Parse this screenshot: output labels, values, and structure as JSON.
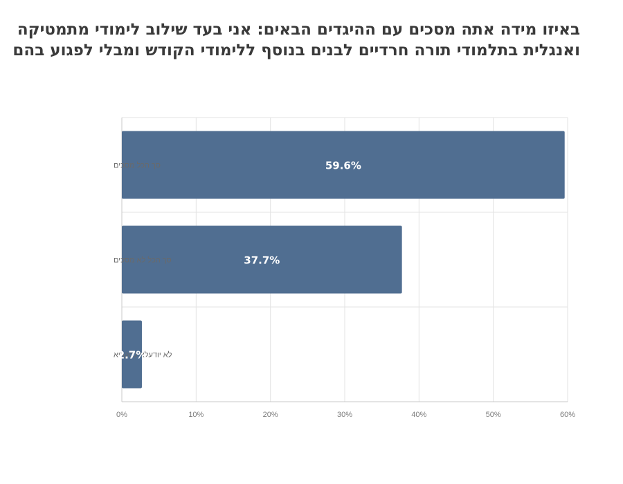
{
  "chart_data": {
    "type": "bar",
    "orientation": "horizontal",
    "title_lines": [
      "באיזו מידה אתה מסכים עם ההיגדים הבאים: אני בעד שילוב לימודי מתמטיקה",
      "ואנגלית בתלמודי תורה חרדיים לבנים בנוסף ללימודי הקודש ומבלי לפגוע בהם"
    ],
    "categories": [
      "סך הכל מסכים",
      "סך הכל לא מסכים",
      "לא יודעלא להקריא"
    ],
    "values": [
      59.6,
      37.7,
      2.7
    ],
    "data_labels": [
      "59.6%",
      "37.7%",
      "2.7%"
    ],
    "x_ticks": [
      "0%",
      "10%",
      "20%",
      "30%",
      "40%",
      "50%",
      "60%"
    ],
    "xlim": [
      0,
      60
    ],
    "grid": true,
    "bar_color": "#506e91",
    "xlabel": "",
    "ylabel": ""
  }
}
